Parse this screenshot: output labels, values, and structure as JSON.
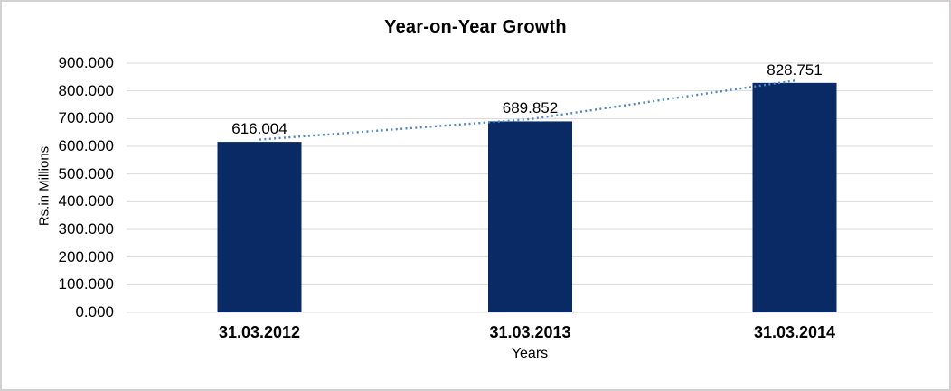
{
  "chart_data": {
    "type": "bar",
    "title": "Year-on-Year Growth",
    "xlabel": "Years",
    "ylabel": "Rs.in Millions",
    "categories": [
      "31.03.2012",
      "31.03.2013",
      "31.03.2014"
    ],
    "values": [
      616.004,
      689.852,
      828.751
    ],
    "data_labels": [
      "616.004",
      "689.852",
      "828.751"
    ],
    "ylim": [
      0,
      900
    ],
    "ytick_step": 100,
    "ytick_labels": [
      "0.000",
      "100.000",
      "200.000",
      "300.000",
      "400.000",
      "500.000",
      "600.000",
      "700.000",
      "800.000",
      "900.000"
    ],
    "grid": true,
    "legend": "none",
    "trendline": {
      "style": "dotted",
      "values": [
        616.004,
        689.852,
        828.751
      ]
    },
    "colors": {
      "bar": "#0a2a66",
      "trendline": "#4e87c7",
      "gridline": "#d9d9d9",
      "canvas_border": "#d2d0d0",
      "text": "#000000"
    }
  }
}
